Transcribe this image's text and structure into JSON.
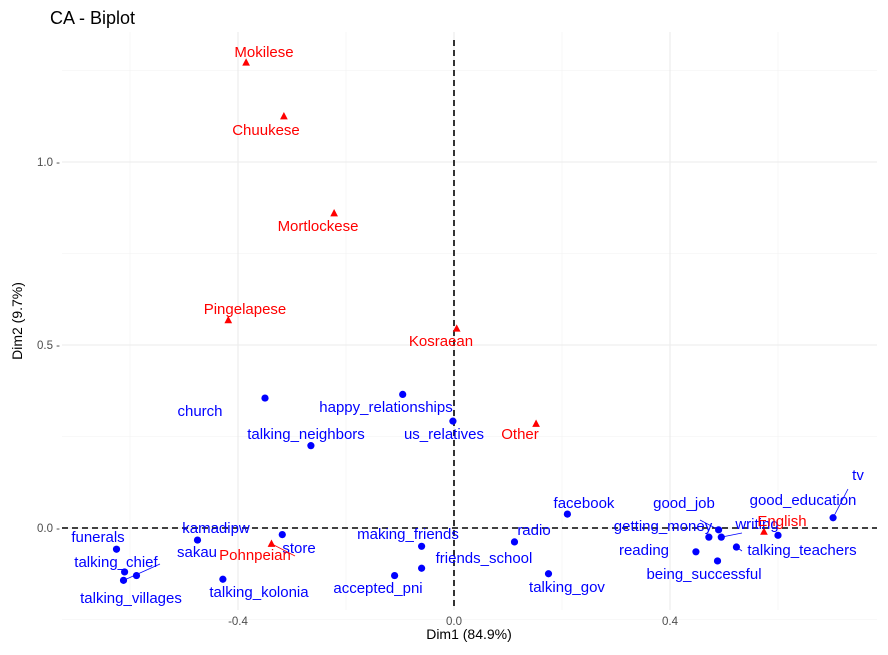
{
  "chart_data": {
    "type": "scatter",
    "title": "CA - Biplot",
    "xlabel": "Dim1 (84.9%)",
    "ylabel": "Dim2 (9.7%)",
    "xlim": [
      -0.72,
      0.78
    ],
    "ylim": [
      -0.2,
      1.33
    ],
    "x_ticks": [
      -0.4,
      0.0,
      0.4
    ],
    "x_tick_labels": [
      "-0.4",
      "0.0",
      "0.4"
    ],
    "y_ticks": [
      0.0,
      0.5,
      1.0
    ],
    "y_tick_labels": [
      "0.0 -",
      "0.5 -",
      "1.0 -"
    ],
    "grid": true,
    "colors": {
      "rows": "#0000ff",
      "columns": "#ff0000",
      "grid": "#ebebeb",
      "reference": "#000000"
    },
    "series": [
      {
        "marker": "circle",
        "color": "#0000ff",
        "points": [
          {
            "label": "church",
            "x": -0.35,
            "y": 0.355
          },
          {
            "label": "happy_relationships",
            "x": -0.095,
            "y": 0.365
          },
          {
            "label": "talking_neighbors",
            "x": -0.265,
            "y": 0.225
          },
          {
            "label": "us_relatives",
            "x": -0.002,
            "y": 0.292
          },
          {
            "label": "facebook",
            "x": 0.21,
            "y": 0.038
          },
          {
            "label": "radio",
            "x": 0.112,
            "y": -0.038
          },
          {
            "label": "making_friends",
            "x": -0.06,
            "y": -0.05
          },
          {
            "label": "friends_school",
            "x": -0.06,
            "y": -0.11
          },
          {
            "label": "accepted_pni",
            "x": -0.11,
            "y": -0.13
          },
          {
            "label": "talking_gov",
            "x": 0.175,
            "y": -0.125
          },
          {
            "label": "good_job",
            "x": 0.472,
            "y": -0.025
          },
          {
            "label": "getting_money",
            "x": 0.49,
            "y": -0.005
          },
          {
            "label": "writing",
            "x": 0.495,
            "y": -0.025
          },
          {
            "label": "good_education",
            "x": 0.6,
            "y": -0.02
          },
          {
            "label": "tv",
            "x": 0.702,
            "y": 0.028
          },
          {
            "label": "reading",
            "x": 0.448,
            "y": -0.065
          },
          {
            "label": "talking_teachers",
            "x": 0.523,
            "y": -0.052
          },
          {
            "label": "being_successful",
            "x": 0.488,
            "y": -0.09
          },
          {
            "label": "kamadipw",
            "x": -0.475,
            "y": -0.033
          },
          {
            "label": "store",
            "x": -0.318,
            "y": -0.018
          },
          {
            "label": "funerals",
            "x": -0.625,
            "y": -0.058
          },
          {
            "label": "sakau",
            "x": -0.61,
            "y": -0.12
          },
          {
            "label": "talking_chief",
            "x": -0.612,
            "y": -0.143
          },
          {
            "label": "talking_villages",
            "x": -0.588,
            "y": -0.13
          },
          {
            "label": "talking_kolonia",
            "x": -0.428,
            "y": -0.14
          }
        ]
      },
      {
        "marker": "triangle",
        "color": "#ff0000",
        "points": [
          {
            "label": "Mokilese",
            "x": -0.385,
            "y": 1.272
          },
          {
            "label": "Chuukese",
            "x": -0.315,
            "y": 1.125
          },
          {
            "label": "Mortlockese",
            "x": -0.222,
            "y": 0.86
          },
          {
            "label": "Pingelapese",
            "x": -0.418,
            "y": 0.568
          },
          {
            "label": "Kosraean",
            "x": 0.005,
            "y": 0.545
          },
          {
            "label": "Other",
            "x": 0.152,
            "y": 0.285
          },
          {
            "label": "English",
            "x": 0.574,
            "y": -0.01
          },
          {
            "label": "Pohnpeian",
            "x": -0.338,
            "y": -0.043
          }
        ]
      }
    ]
  }
}
